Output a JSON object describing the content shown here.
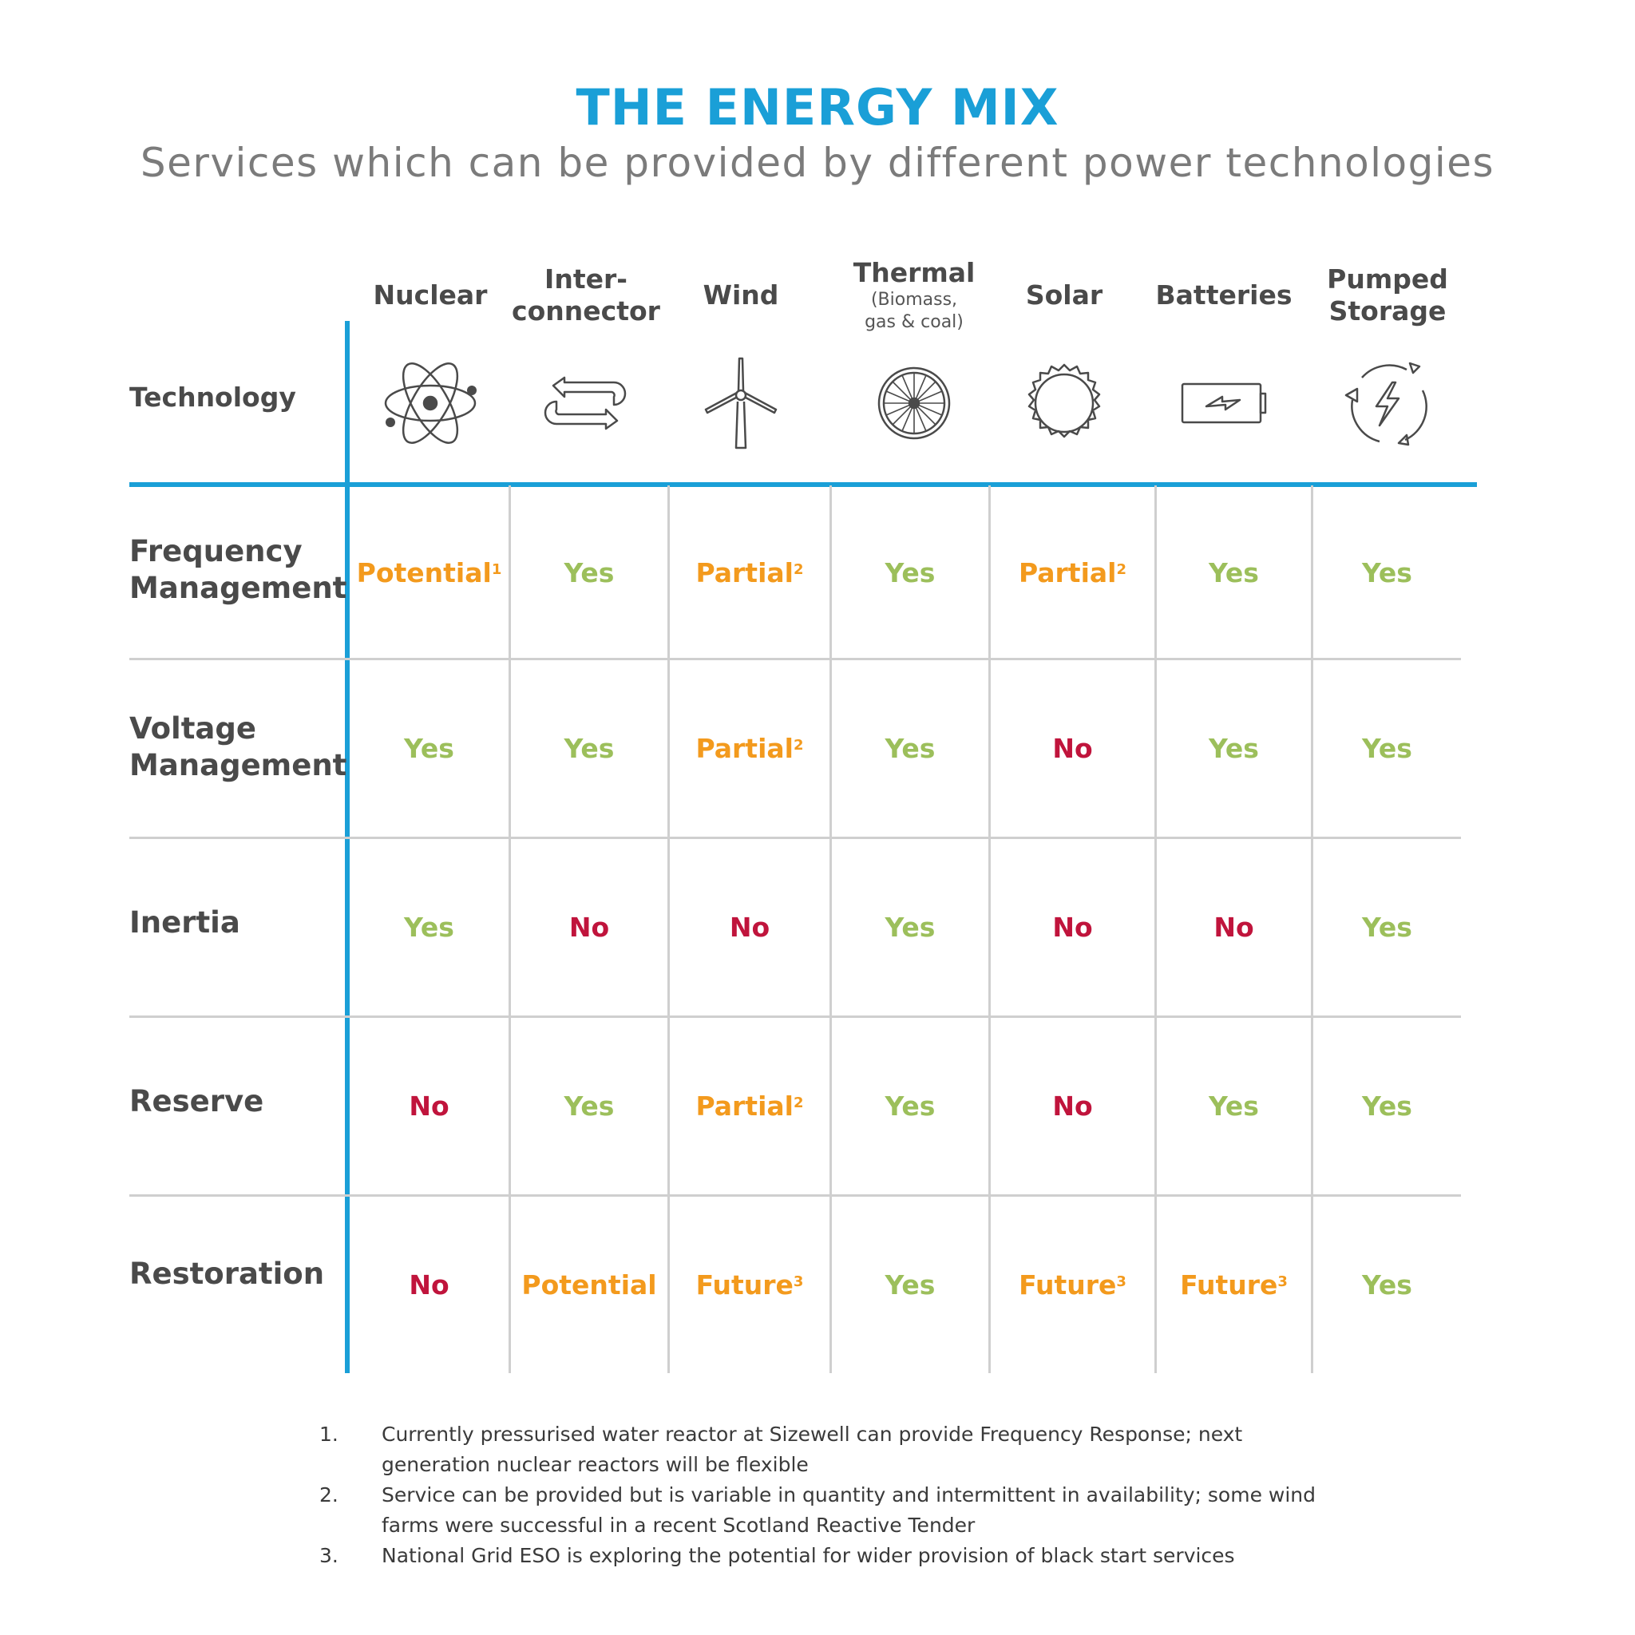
{
  "header": {
    "title": "THE ENERGY MIX",
    "subtitle": "Services which can be provided by different power technologies"
  },
  "technology_label": "Technology",
  "technologies": [
    {
      "line1": "Nuclear",
      "line2": "",
      "sub": "",
      "icon": "atom-icon"
    },
    {
      "line1": "Inter-",
      "line2": "connector",
      "sub": "",
      "icon": "interconnector-arrows-icon"
    },
    {
      "line1": "Wind",
      "line2": "",
      "sub": "",
      "icon": "wind-turbine-icon"
    },
    {
      "line1": "Thermal",
      "line2": "",
      "sub": "(Biomass, gas & coal)",
      "icon": "turbine-wheel-icon"
    },
    {
      "line1": "Solar",
      "line2": "",
      "sub": "",
      "icon": "sun-icon"
    },
    {
      "line1": "Batteries",
      "line2": "",
      "sub": "",
      "icon": "battery-icon"
    },
    {
      "line1": "Pumped",
      "line2": "Storage",
      "sub": "",
      "icon": "recycle-lightning-icon"
    }
  ],
  "rows": [
    {
      "label_line1": "Frequency",
      "label_line2": "Management",
      "cells": [
        {
          "text": "Potential",
          "sup": "1",
          "status": "partial"
        },
        {
          "text": "Yes",
          "sup": "",
          "status": "yes"
        },
        {
          "text": "Partial",
          "sup": "2",
          "status": "partial"
        },
        {
          "text": "Yes",
          "sup": "",
          "status": "yes"
        },
        {
          "text": "Partial",
          "sup": "2",
          "status": "partial"
        },
        {
          "text": "Yes",
          "sup": "",
          "status": "yes"
        },
        {
          "text": "Yes",
          "sup": "",
          "status": "yes"
        }
      ]
    },
    {
      "label_line1": "Voltage",
      "label_line2": "Management",
      "cells": [
        {
          "text": "Yes",
          "sup": "",
          "status": "yes"
        },
        {
          "text": "Yes",
          "sup": "",
          "status": "yes"
        },
        {
          "text": "Partial",
          "sup": "2",
          "status": "partial"
        },
        {
          "text": "Yes",
          "sup": "",
          "status": "yes"
        },
        {
          "text": "No",
          "sup": "",
          "status": "no"
        },
        {
          "text": "Yes",
          "sup": "",
          "status": "yes"
        },
        {
          "text": "Yes",
          "sup": "",
          "status": "yes"
        }
      ]
    },
    {
      "label_line1": "Inertia",
      "label_line2": "",
      "cells": [
        {
          "text": "Yes",
          "sup": "",
          "status": "yes"
        },
        {
          "text": "No",
          "sup": "",
          "status": "no"
        },
        {
          "text": "No",
          "sup": "",
          "status": "no"
        },
        {
          "text": "Yes",
          "sup": "",
          "status": "yes"
        },
        {
          "text": "No",
          "sup": "",
          "status": "no"
        },
        {
          "text": "No",
          "sup": "",
          "status": "no"
        },
        {
          "text": "Yes",
          "sup": "",
          "status": "yes"
        }
      ]
    },
    {
      "label_line1": "Reserve",
      "label_line2": "",
      "cells": [
        {
          "text": "No",
          "sup": "",
          "status": "no"
        },
        {
          "text": "Yes",
          "sup": "",
          "status": "yes"
        },
        {
          "text": "Partial",
          "sup": "2",
          "status": "partial"
        },
        {
          "text": "Yes",
          "sup": "",
          "status": "yes"
        },
        {
          "text": "No",
          "sup": "",
          "status": "no"
        },
        {
          "text": "Yes",
          "sup": "",
          "status": "yes"
        },
        {
          "text": "Yes",
          "sup": "",
          "status": "yes"
        }
      ]
    },
    {
      "label_line1": "Restoration",
      "label_line2": "",
      "cells": [
        {
          "text": "No",
          "sup": "",
          "status": "no"
        },
        {
          "text": "Potential",
          "sup": "",
          "status": "partial"
        },
        {
          "text": "Future",
          "sup": "3",
          "status": "partial"
        },
        {
          "text": "Yes",
          "sup": "",
          "status": "yes"
        },
        {
          "text": "Future",
          "sup": "3",
          "status": "partial"
        },
        {
          "text": "Future",
          "sup": "3",
          "status": "partial"
        },
        {
          "text": "Yes",
          "sup": "",
          "status": "yes"
        }
      ]
    }
  ],
  "footnotes": [
    {
      "num": "1.",
      "text": "Currently pressurised water reactor at Sizewell can provide Frequency Response; next generation nuclear reactors will be flexible"
    },
    {
      "num": "2.",
      "text": "Service can be provided but is variable in quantity and intermittent in availability; some wind farms were successful in a recent Scotland Reactive Tender"
    },
    {
      "num": "3.",
      "text": "National Grid ESO is exploring the potential for wider provision of black start services"
    }
  ],
  "colors": {
    "accent": "#1a9fd7",
    "yes": "#9cbf5b",
    "no": "#c0143c",
    "partial": "#f39a1d",
    "grid": "#cfcfcf",
    "text": "#4a4a4a"
  }
}
